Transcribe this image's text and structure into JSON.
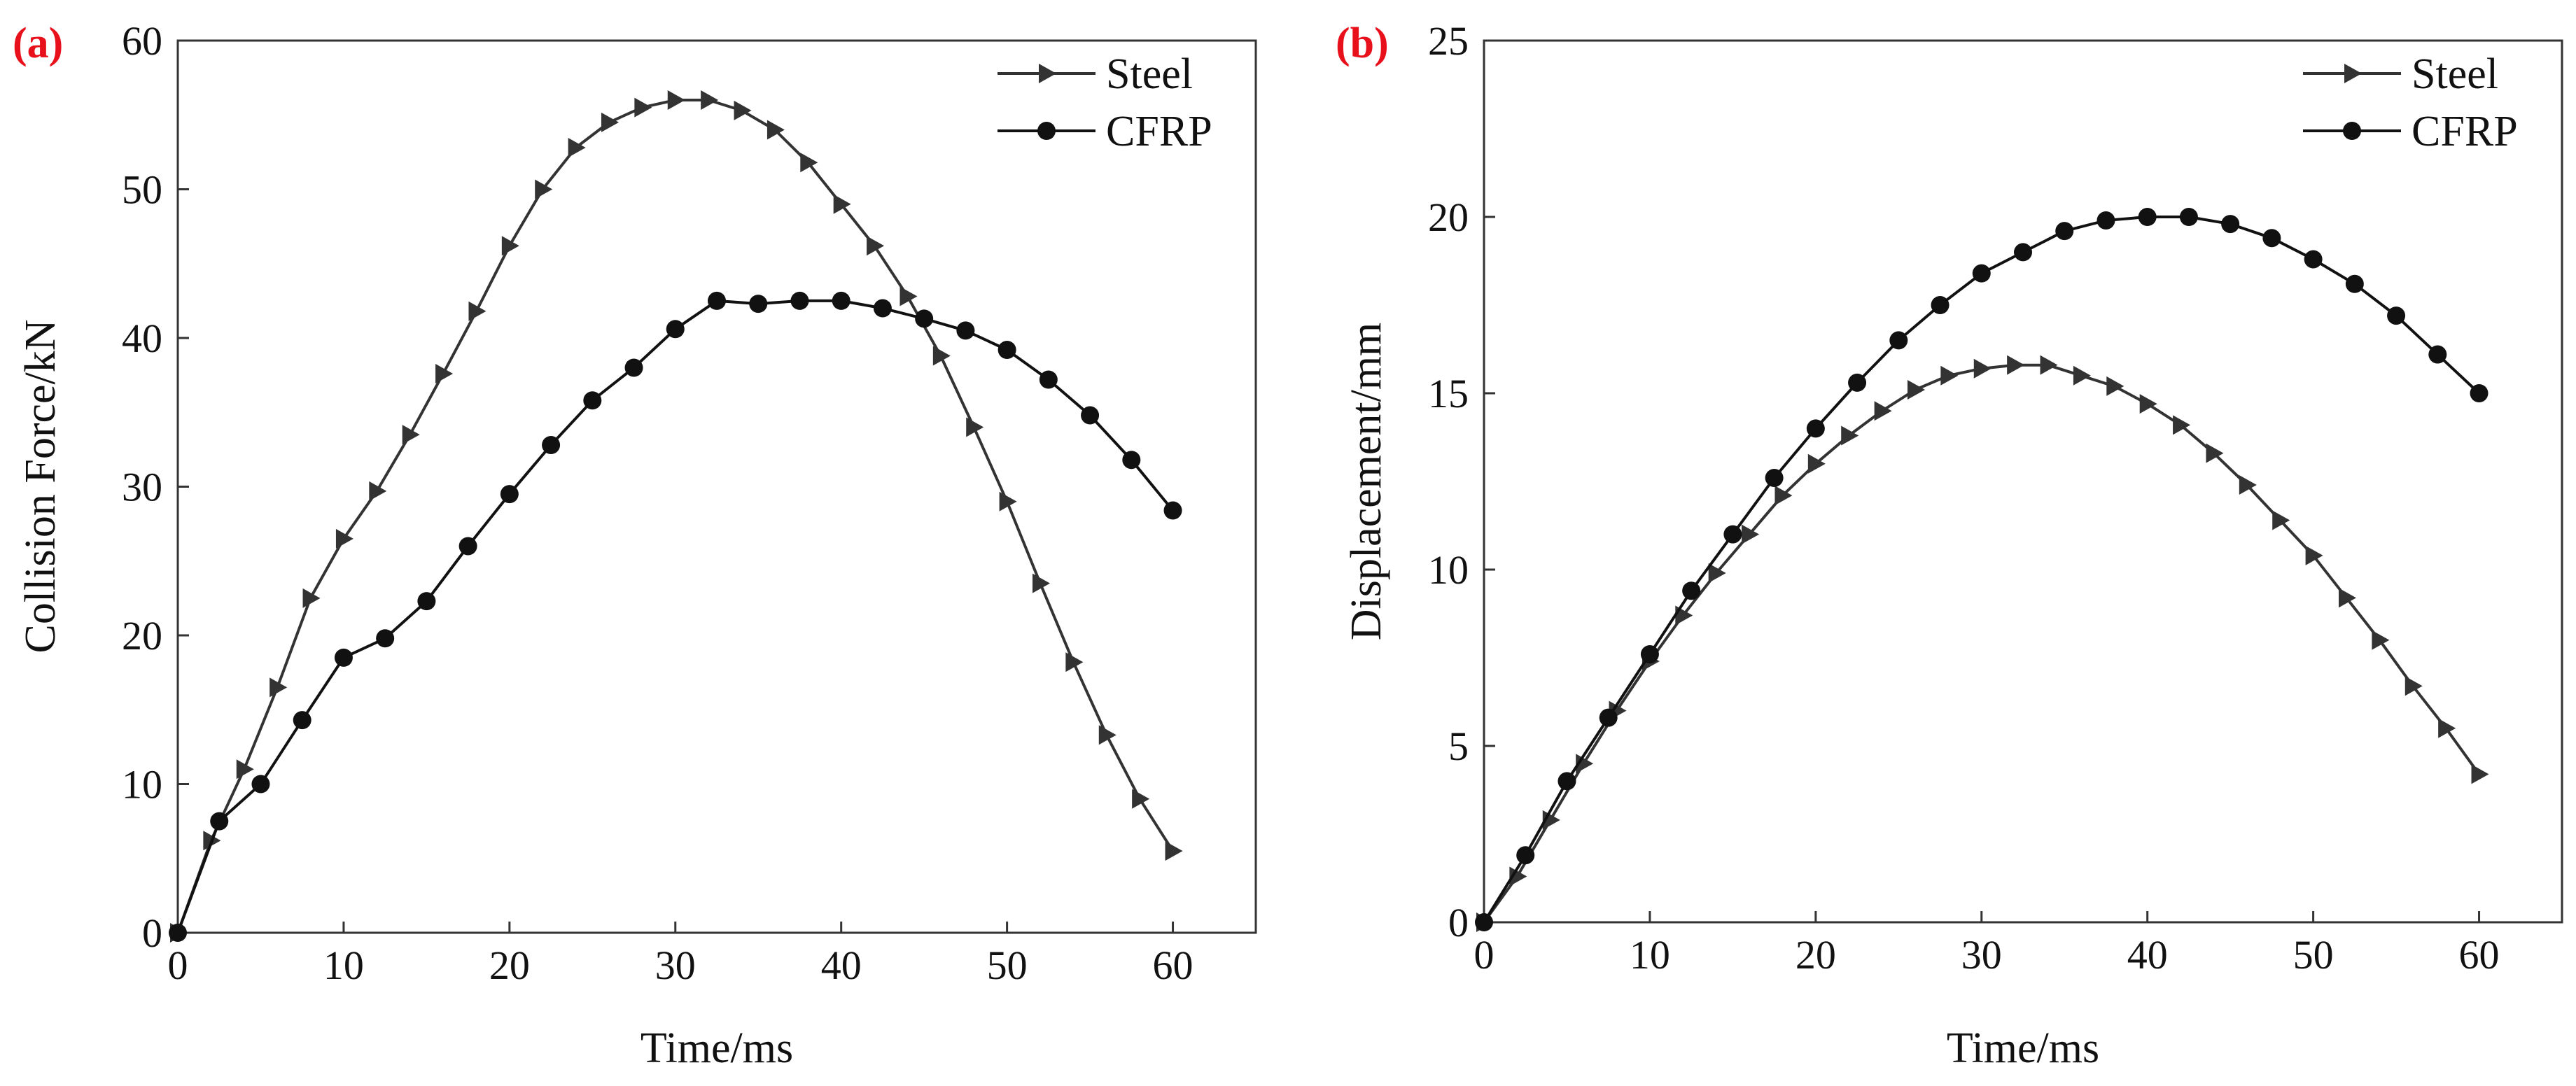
{
  "chart_data": [
    {
      "panel_label": "(a)",
      "type": "line",
      "xlabel": "Time/ms",
      "ylabel": "Collision Force/kN",
      "xlim": [
        0,
        65
      ],
      "ylim": [
        0,
        60
      ],
      "xticks": [
        0,
        10,
        20,
        30,
        40,
        50,
        60
      ],
      "yticks": [
        0,
        10,
        20,
        30,
        40,
        50,
        60
      ],
      "legend_position": "top-right",
      "series": [
        {
          "name": "Steel",
          "marker": "triangle-right",
          "color": "#333333",
          "x": [
            0,
            2,
            4,
            6,
            8,
            10,
            12,
            14,
            16,
            18,
            20,
            22,
            24,
            26,
            28,
            30,
            32,
            34,
            36,
            38,
            40,
            42,
            44,
            46,
            48,
            50,
            52,
            54,
            56,
            58,
            60
          ],
          "y": [
            0,
            6.2,
            11,
            16.5,
            22.5,
            26.5,
            29.7,
            33.5,
            37.6,
            41.8,
            46.2,
            50,
            52.8,
            54.5,
            55.5,
            56,
            56,
            55.3,
            54,
            51.8,
            49,
            46.2,
            42.8,
            38.8,
            34,
            29,
            23.5,
            18.2,
            13.3,
            9,
            5.5
          ]
        },
        {
          "name": "CFRP",
          "marker": "circle",
          "color": "#111111",
          "x": [
            0,
            2.5,
            5,
            7.5,
            10,
            12.5,
            15,
            17.5,
            20,
            22.5,
            25,
            27.5,
            30,
            32.5,
            35,
            37.5,
            40,
            42.5,
            45,
            47.5,
            50,
            52.5,
            55,
            57.5,
            60
          ],
          "y": [
            0,
            7.5,
            10,
            14.3,
            18.5,
            19.8,
            22.3,
            26,
            29.5,
            32.8,
            35.8,
            38,
            40.6,
            42.5,
            42.3,
            42.5,
            42.5,
            42,
            41.3,
            40.5,
            39.2,
            37.2,
            34.8,
            31.8,
            28.4
          ]
        }
      ]
    },
    {
      "panel_label": "(b)",
      "type": "line",
      "xlabel": "Time/ms",
      "ylabel": "Displacement/mm",
      "xlim": [
        0,
        65
      ],
      "ylim": [
        0,
        25
      ],
      "xticks": [
        0,
        10,
        20,
        30,
        40,
        50,
        60
      ],
      "yticks": [
        0,
        5,
        10,
        15,
        20,
        25
      ],
      "legend_position": "top-right",
      "series": [
        {
          "name": "Steel",
          "marker": "triangle-right",
          "color": "#333333",
          "x": [
            0,
            2,
            4,
            6,
            8,
            10,
            12,
            14,
            16,
            18,
            20,
            22,
            24,
            26,
            28,
            30,
            32,
            34,
            36,
            38,
            40,
            42,
            44,
            46,
            48,
            50,
            52,
            54,
            56,
            58,
            60
          ],
          "y": [
            0,
            1.3,
            2.9,
            4.5,
            6,
            7.4,
            8.7,
            9.9,
            11,
            12.1,
            13,
            13.8,
            14.5,
            15.1,
            15.5,
            15.7,
            15.8,
            15.8,
            15.5,
            15.2,
            14.7,
            14.1,
            13.3,
            12.4,
            11.4,
            10.4,
            9.2,
            8,
            6.7,
            5.5,
            4.2
          ]
        },
        {
          "name": "CFRP",
          "marker": "circle",
          "color": "#111111",
          "x": [
            0,
            2.5,
            5,
            7.5,
            10,
            12.5,
            15,
            17.5,
            20,
            22.5,
            25,
            27.5,
            30,
            32.5,
            35,
            37.5,
            40,
            42.5,
            45,
            47.5,
            50,
            52.5,
            55,
            57.5,
            60
          ],
          "y": [
            0,
            1.9,
            4,
            5.8,
            7.6,
            9.4,
            11,
            12.6,
            14,
            15.3,
            16.5,
            17.5,
            18.4,
            19,
            19.6,
            19.9,
            20,
            20,
            19.8,
            19.4,
            18.8,
            18.1,
            17.2,
            16.1,
            15
          ]
        }
      ]
    }
  ]
}
